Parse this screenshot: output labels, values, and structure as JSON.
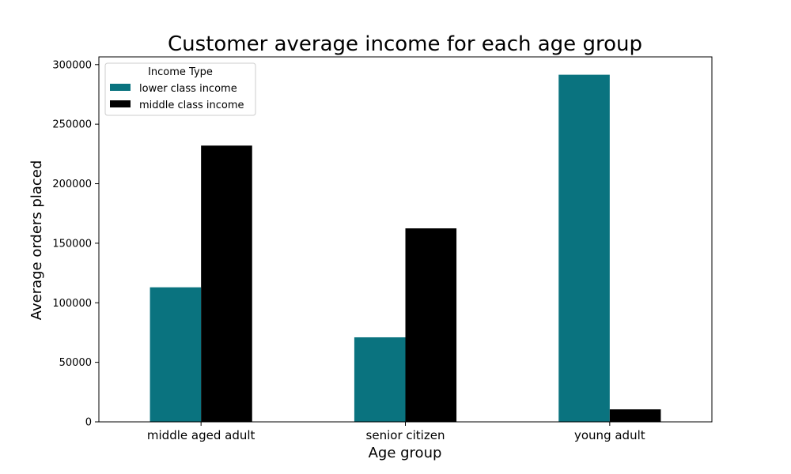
{
  "chart_data": {
    "type": "bar",
    "title": "Customer average income for each age group",
    "xlabel": "Age group",
    "ylabel": "Average orders placed",
    "categories": [
      "middle aged adult",
      "senior citizen",
      "young adult"
    ],
    "series": [
      {
        "name": "lower class income",
        "color": "#0a737f",
        "values": [
          113000,
          71000,
          291500
        ]
      },
      {
        "name": "middle class income",
        "color": "#000000",
        "values": [
          232000,
          162500,
          10500
        ]
      }
    ],
    "ylim": [
      0,
      306500
    ],
    "yticks": [
      0,
      50000,
      100000,
      150000,
      200000,
      250000,
      300000
    ],
    "ytick_labels": [
      "0",
      "50000",
      "100000",
      "150000",
      "200000",
      "250000",
      "300000"
    ],
    "legend": {
      "title": "Income Type",
      "placement": "top-left"
    },
    "grid": false
  }
}
